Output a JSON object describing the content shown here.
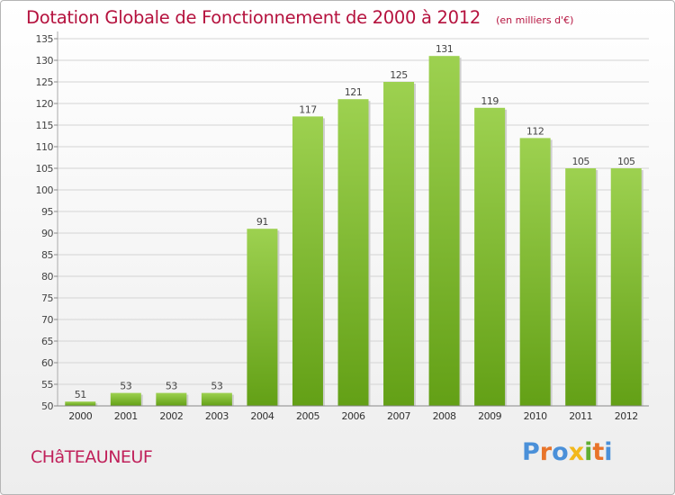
{
  "header": {
    "title": "Dotation Globale de Fonctionnement de 2000 à 2012",
    "unit": "(en milliers d'€)"
  },
  "footer": {
    "commune": "CHâTEAUNEUF",
    "logo": "Proxiti"
  },
  "colors": {
    "title": "#b5123e",
    "bar_top": "#9dd150",
    "bar_bottom": "#63a016",
    "logo_letters": [
      "#4a90d9",
      "#e8742a",
      "#4a90d9",
      "#f2b81c",
      "#5fae32",
      "#e8742a",
      "#4a90d9"
    ]
  },
  "chart_data": {
    "type": "bar",
    "categories": [
      "2000",
      "2001",
      "2002",
      "2003",
      "2004",
      "2005",
      "2006",
      "2007",
      "2008",
      "2009",
      "2010",
      "2011",
      "2012"
    ],
    "values": [
      51,
      53,
      53,
      53,
      91,
      117,
      121,
      125,
      131,
      119,
      112,
      105,
      105
    ],
    "data_labels": [
      "51",
      "53",
      "53",
      "53",
      "91",
      "117",
      "121",
      "125",
      "131",
      "119",
      "112",
      "105",
      "105"
    ],
    "y_ticks": [
      50,
      55,
      60,
      65,
      70,
      75,
      80,
      85,
      90,
      95,
      100,
      105,
      110,
      115,
      120,
      125,
      130,
      135
    ],
    "ylim": [
      50,
      135
    ],
    "grid": true
  }
}
